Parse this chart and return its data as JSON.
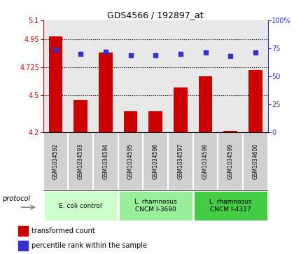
{
  "title": "GDS4566 / 192897_at",
  "samples": [
    "GSM1034592",
    "GSM1034593",
    "GSM1034594",
    "GSM1034595",
    "GSM1034596",
    "GSM1034597",
    "GSM1034598",
    "GSM1034599",
    "GSM1034600"
  ],
  "bar_values": [
    4.97,
    4.46,
    4.84,
    4.37,
    4.37,
    4.56,
    4.65,
    4.21,
    4.7
  ],
  "dot_values": [
    74,
    70,
    72,
    69,
    69,
    70,
    71,
    68,
    71
  ],
  "bar_color": "#cc0000",
  "dot_color": "#3333cc",
  "ylim_left": [
    4.2,
    5.1
  ],
  "ylim_right": [
    0,
    100
  ],
  "yticks_left": [
    4.2,
    4.5,
    4.725,
    4.95,
    5.1
  ],
  "yticks_left_labels": [
    "4.2",
    "4.5",
    "4.725",
    "4.95",
    "5.1"
  ],
  "yticks_right": [
    0,
    25,
    50,
    75,
    100
  ],
  "yticks_right_labels": [
    "0",
    "25",
    "50",
    "75",
    "100%"
  ],
  "hlines": [
    4.5,
    4.725,
    4.95
  ],
  "groups": [
    {
      "label": "E. coli control",
      "start": 0,
      "end": 3,
      "color": "#ccffcc"
    },
    {
      "label": "L. rhamnosus\nCNCM I-3690",
      "start": 3,
      "end": 6,
      "color": "#99ee99"
    },
    {
      "label": "L. rhamnosus\nCNCM I-4317",
      "start": 6,
      "end": 9,
      "color": "#44cc44"
    }
  ],
  "protocol_label": "protocol",
  "legend_bar_label": "transformed count",
  "legend_dot_label": "percentile rank within the sample",
  "bar_bottom": 4.2,
  "plot_bg_color": "#e8e8e8",
  "sample_cell_color": "#d0d0d0"
}
